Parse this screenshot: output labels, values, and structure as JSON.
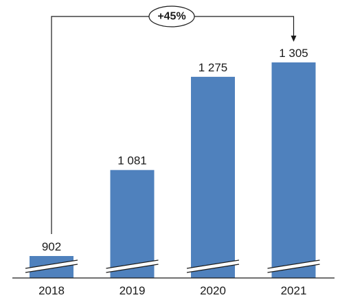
{
  "chart_data": {
    "type": "bar",
    "categories": [
      "2018",
      "2019",
      "2020",
      "2021"
    ],
    "values": [
      902,
      1081,
      1275,
      1305
    ],
    "value_labels": [
      "902",
      "1 081",
      "1 275",
      "1 305"
    ],
    "broken_axis": true,
    "grid": false,
    "legend": "none",
    "colors": {
      "bar": "#4f81bd",
      "text": "#1a1a1a"
    },
    "annotation": {
      "text": "+45%",
      "from_category": "2018",
      "to_category": "2021"
    }
  }
}
